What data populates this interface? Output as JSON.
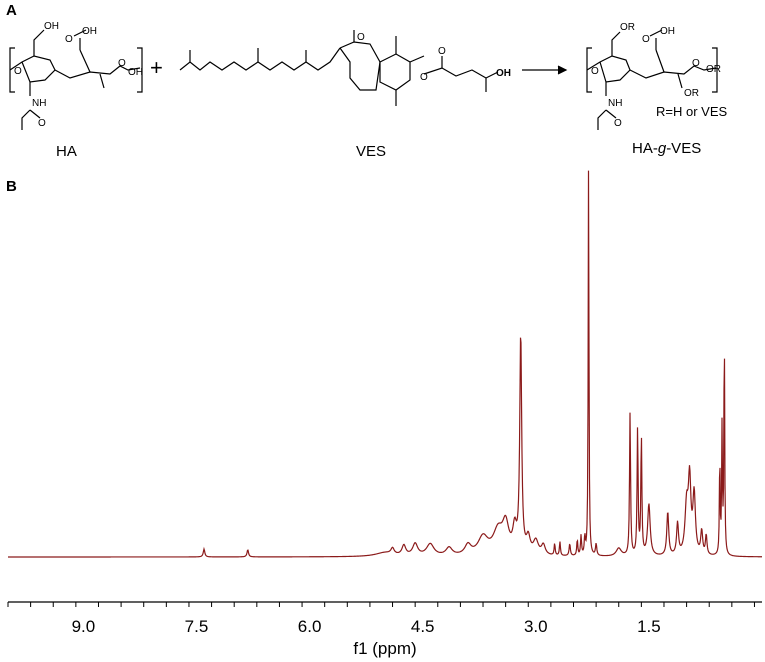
{
  "panel_a": {
    "label": "A",
    "compounds": [
      {
        "name": "HA",
        "atoms": [
          "OH",
          "OH",
          "OH",
          "O",
          "O",
          "O",
          "NH",
          "O"
        ]
      },
      {
        "name": "VES",
        "atoms": [
          "O",
          "O",
          "O",
          "OH"
        ]
      },
      {
        "name": "HA-g-VES",
        "name_prefix": "HA-",
        "name_italic": "g",
        "name_suffix": "-VES",
        "atoms": [
          "OR",
          "OH",
          "OR",
          "OR",
          "O",
          "O",
          "O",
          "NH",
          "O"
        ],
        "note": "R=H or VES"
      }
    ],
    "plus": "+"
  },
  "panel_b": {
    "label": "B"
  },
  "chart_data": {
    "type": "line",
    "xlabel": "f1 (ppm)",
    "x_reversed": true,
    "xlim": [
      10.0,
      0.0
    ],
    "xticks": [
      9.0,
      7.5,
      6.0,
      4.5,
      3.0,
      1.5
    ],
    "tick_labels": [
      "9.0",
      "7.5",
      "6.0",
      "4.5",
      "3.0",
      "1.5"
    ],
    "y_axis_shown": false,
    "grid": false,
    "line_color": "#8b1a1a",
    "baseline": 0.0,
    "ylim": [
      0,
      1.0
    ],
    "peaks": [
      {
        "ppm": 7.4,
        "height": 0.02,
        "width": 0.012
      },
      {
        "ppm": 6.82,
        "height": 0.018,
        "width": 0.012
      },
      {
        "ppm": 5.0,
        "height": 0.01,
        "width": 0.15
      },
      {
        "ppm": 4.9,
        "height": 0.015,
        "width": 0.025
      },
      {
        "ppm": 4.75,
        "height": 0.025,
        "width": 0.03
      },
      {
        "ppm": 4.6,
        "height": 0.03,
        "width": 0.04
      },
      {
        "ppm": 4.4,
        "height": 0.03,
        "width": 0.06
      },
      {
        "ppm": 4.15,
        "height": 0.02,
        "width": 0.05
      },
      {
        "ppm": 3.9,
        "height": 0.025,
        "width": 0.05
      },
      {
        "ppm": 3.7,
        "height": 0.045,
        "width": 0.08
      },
      {
        "ppm": 3.5,
        "height": 0.06,
        "width": 0.08
      },
      {
        "ppm": 3.4,
        "height": 0.07,
        "width": 0.05
      },
      {
        "ppm": 3.28,
        "height": 0.06,
        "width": 0.03
      },
      {
        "ppm": 3.2,
        "height": 0.55,
        "width": 0.015
      },
      {
        "ppm": 3.1,
        "height": 0.04,
        "width": 0.03
      },
      {
        "ppm": 3.0,
        "height": 0.035,
        "width": 0.04
      },
      {
        "ppm": 2.9,
        "height": 0.025,
        "width": 0.03
      },
      {
        "ppm": 2.75,
        "height": 0.03,
        "width": 0.008
      },
      {
        "ppm": 2.68,
        "height": 0.035,
        "width": 0.008
      },
      {
        "ppm": 2.55,
        "height": 0.03,
        "width": 0.01
      },
      {
        "ppm": 2.45,
        "height": 0.04,
        "width": 0.008
      },
      {
        "ppm": 2.4,
        "height": 0.05,
        "width": 0.008
      },
      {
        "ppm": 2.35,
        "height": 0.045,
        "width": 0.008
      },
      {
        "ppm": 2.3,
        "height": 1.0,
        "width": 0.006
      },
      {
        "ppm": 2.2,
        "height": 0.03,
        "width": 0.01
      },
      {
        "ppm": 1.9,
        "height": 0.02,
        "width": 0.04
      },
      {
        "ppm": 1.75,
        "height": 0.36,
        "width": 0.008
      },
      {
        "ppm": 1.65,
        "height": 0.32,
        "width": 0.008
      },
      {
        "ppm": 1.6,
        "height": 0.3,
        "width": 0.008
      },
      {
        "ppm": 1.5,
        "height": 0.13,
        "width": 0.02
      },
      {
        "ppm": 1.25,
        "height": 0.11,
        "width": 0.015
      },
      {
        "ppm": 1.12,
        "height": 0.08,
        "width": 0.015
      },
      {
        "ppm": 1.0,
        "height": 0.12,
        "width": 0.025
      },
      {
        "ppm": 0.96,
        "height": 0.18,
        "width": 0.02
      },
      {
        "ppm": 0.9,
        "height": 0.15,
        "width": 0.02
      },
      {
        "ppm": 0.8,
        "height": 0.06,
        "width": 0.015
      },
      {
        "ppm": 0.74,
        "height": 0.05,
        "width": 0.012
      },
      {
        "ppm": 0.56,
        "height": 0.25,
        "width": 0.006
      },
      {
        "ppm": 0.53,
        "height": 0.32,
        "width": 0.006
      },
      {
        "ppm": 0.5,
        "height": 0.58,
        "width": 0.006
      }
    ]
  }
}
